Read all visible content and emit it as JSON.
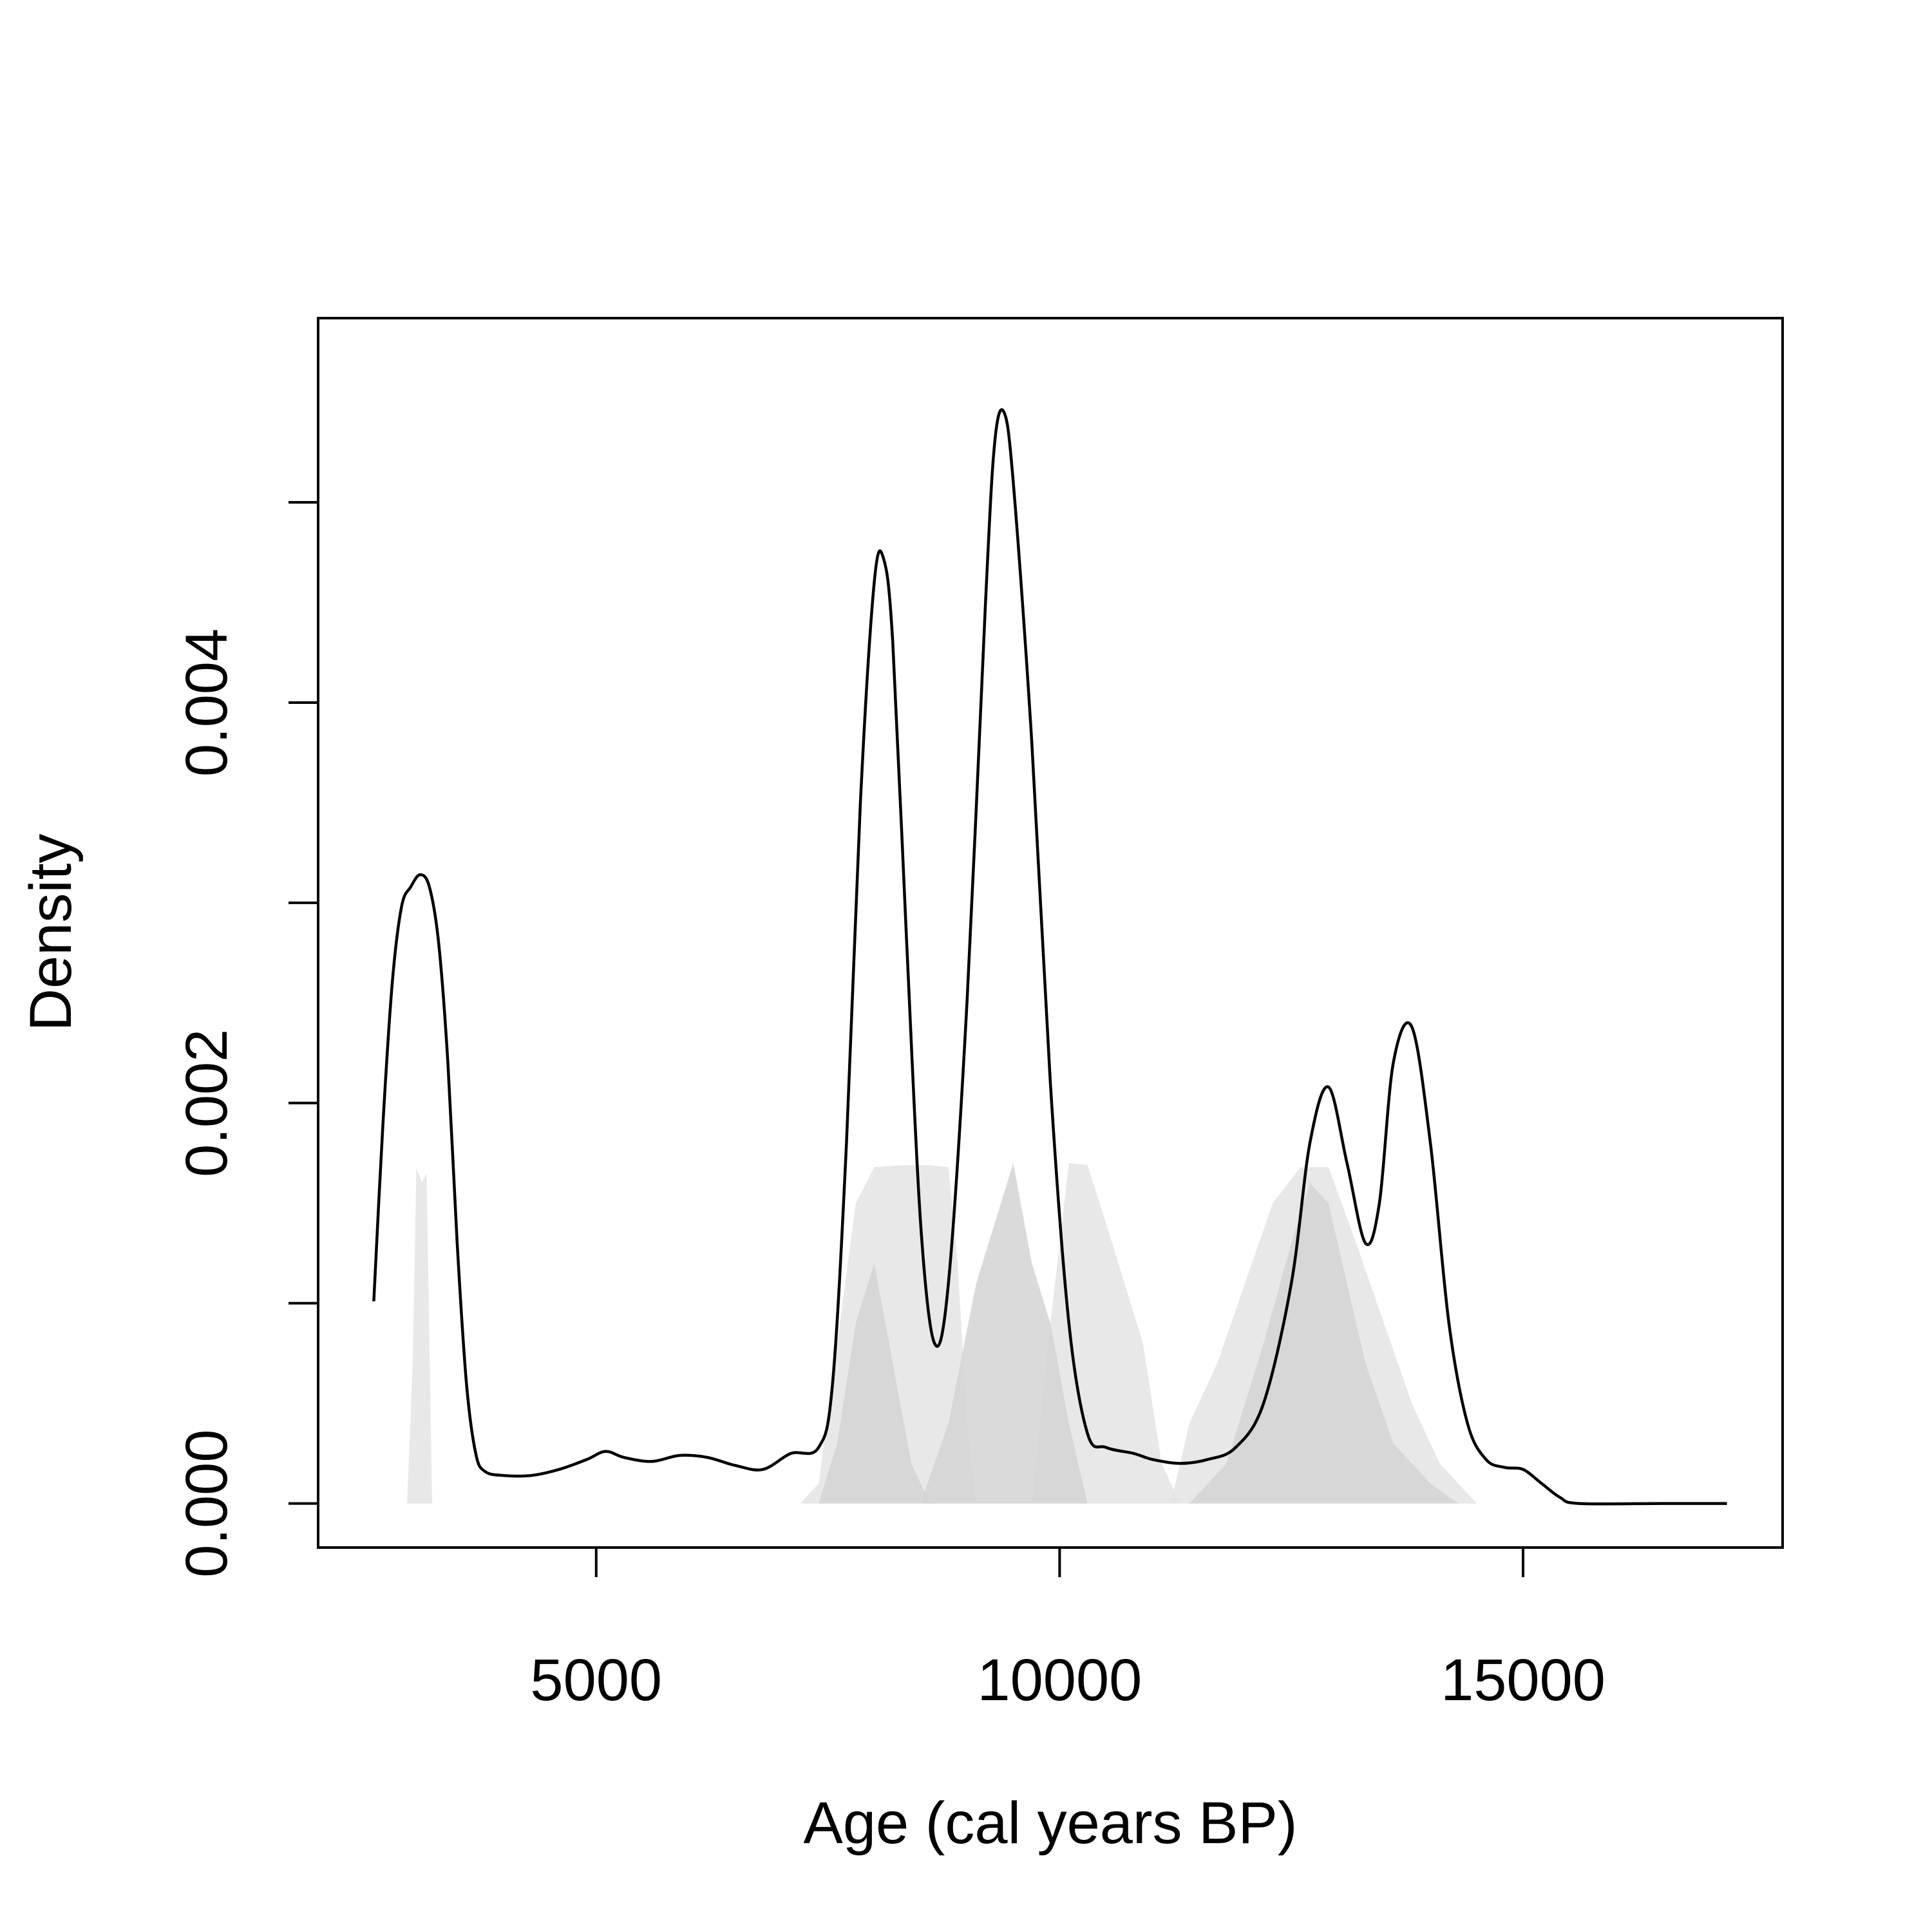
{
  "chart_data": {
    "type": "area",
    "title": "",
    "xlabel": "Age (cal years BP)",
    "ylabel": "Density",
    "xlim": [
      2000,
      17800
    ],
    "ylim": [
      -0.00022,
      0.00592
    ],
    "x_ticks": [
      5000,
      10000,
      15000
    ],
    "x_tick_labels": [
      "5000",
      "10000",
      "15000"
    ],
    "y_ticks": [
      0,
      0.001,
      0.002,
      0.003,
      0.004,
      0.005
    ],
    "y_tick_labels": [
      "0.000",
      "",
      "0.002",
      "",
      "0.004",
      ""
    ],
    "grid": false,
    "legend": "none",
    "colors": {
      "line": "#000000",
      "shade_light": "#e6e6e6",
      "shade_dark": "#d3d3d3",
      "frame": "#000000"
    },
    "series": [
      {
        "kind": "summed-density-line",
        "points": [
          [
            2600,
            0.00101
          ],
          [
            2700,
            0.0019
          ],
          [
            2800,
            0.0026
          ],
          [
            2900,
            0.00298
          ],
          [
            3000,
            0.00308
          ],
          [
            3100,
            0.00314
          ],
          [
            3200,
            0.00308
          ],
          [
            3300,
            0.0028
          ],
          [
            3400,
            0.0022
          ],
          [
            3500,
            0.0013
          ],
          [
            3600,
            0.0006
          ],
          [
            3700,
            0.00025
          ],
          [
            3800,
            0.00016
          ],
          [
            4000,
            0.00014
          ],
          [
            4300,
            0.00014
          ],
          [
            4600,
            0.00017
          ],
          [
            4900,
            0.00022
          ],
          [
            5100,
            0.00026
          ],
          [
            5300,
            0.00023
          ],
          [
            5600,
            0.00021
          ],
          [
            5900,
            0.00024
          ],
          [
            6200,
            0.00023
          ],
          [
            6500,
            0.00019
          ],
          [
            6800,
            0.00017
          ],
          [
            7100,
            0.00025
          ],
          [
            7400,
            0.00028
          ],
          [
            7550,
            0.0006
          ],
          [
            7700,
            0.0018
          ],
          [
            7850,
            0.0035
          ],
          [
            8000,
            0.0046
          ],
          [
            8100,
            0.00472
          ],
          [
            8200,
            0.0043
          ],
          [
            8350,
            0.0028
          ],
          [
            8500,
            0.0014
          ],
          [
            8650,
            0.0008
          ],
          [
            8800,
            0.0011
          ],
          [
            9000,
            0.0025
          ],
          [
            9200,
            0.0045
          ],
          [
            9300,
            0.0053
          ],
          [
            9400,
            0.00545
          ],
          [
            9500,
            0.0051
          ],
          [
            9700,
            0.0038
          ],
          [
            9900,
            0.0021
          ],
          [
            10100,
            0.0009
          ],
          [
            10300,
            0.00035
          ],
          [
            10500,
            0.00028
          ],
          [
            10800,
            0.00025
          ],
          [
            11000,
            0.00022
          ],
          [
            11300,
            0.0002
          ],
          [
            11600,
            0.00022
          ],
          [
            11900,
            0.00028
          ],
          [
            12200,
            0.0005
          ],
          [
            12500,
            0.0011
          ],
          [
            12700,
            0.0018
          ],
          [
            12900,
            0.00208
          ],
          [
            13100,
            0.0017
          ],
          [
            13300,
            0.0013
          ],
          [
            13450,
            0.0015
          ],
          [
            13600,
            0.0022
          ],
          [
            13800,
            0.00238
          ],
          [
            14000,
            0.0018
          ],
          [
            14200,
            0.0009
          ],
          [
            14400,
            0.0004
          ],
          [
            14600,
            0.00022
          ],
          [
            14800,
            0.00018
          ],
          [
            15000,
            0.00017
          ],
          [
            15200,
            0.0001
          ],
          [
            15400,
            3e-05
          ],
          [
            15600,
            0.0
          ],
          [
            16500,
            0.0
          ],
          [
            17200,
            0.0
          ]
        ]
      }
    ],
    "shaded_densities": [
      {
        "shade": "light",
        "points": [
          [
            2960,
            0.0
          ],
          [
            3020,
            0.0007
          ],
          [
            3060,
            0.00168
          ],
          [
            3120,
            0.0016
          ],
          [
            3170,
            0.00165
          ],
          [
            3230,
            0.0
          ],
          [
            3300,
            0.0
          ]
        ]
      },
      {
        "shade": "light",
        "points": [
          [
            7200,
            0.0
          ],
          [
            7400,
            0.0001
          ],
          [
            7600,
            0.0008
          ],
          [
            7800,
            0.0015
          ],
          [
            8000,
            0.00168
          ],
          [
            8300,
            0.00169
          ],
          [
            8600,
            0.00169
          ],
          [
            8800,
            0.00168
          ],
          [
            8900,
            0.0012
          ],
          [
            9000,
            0.0004
          ],
          [
            9100,
            0.0
          ],
          [
            9200,
            0.0
          ]
        ]
      },
      {
        "shade": "light",
        "points": [
          [
            9700,
            0.0
          ],
          [
            9900,
            0.0009
          ],
          [
            10100,
            0.0017
          ],
          [
            10300,
            0.00169
          ],
          [
            10500,
            0.0014
          ],
          [
            10700,
            0.0011
          ],
          [
            10900,
            0.0008
          ],
          [
            11100,
            0.0002
          ],
          [
            11300,
            0.0
          ],
          [
            11500,
            0.0
          ]
        ]
      },
      {
        "shade": "light",
        "points": [
          [
            11200,
            0.0
          ],
          [
            11400,
            0.0004
          ],
          [
            11700,
            0.0007
          ],
          [
            12000,
            0.0011
          ],
          [
            12300,
            0.0015
          ],
          [
            12600,
            0.00168
          ],
          [
            12900,
            0.00168
          ],
          [
            13200,
            0.0013
          ],
          [
            13500,
            0.0009
          ],
          [
            13800,
            0.0005
          ],
          [
            14100,
            0.0002
          ],
          [
            14500,
            0.0
          ],
          [
            14800,
            0.0
          ]
        ]
      },
      {
        "shade": "dark",
        "points": [
          [
            7400,
            0.0
          ],
          [
            7600,
            0.0003
          ],
          [
            7800,
            0.0009
          ],
          [
            8000,
            0.0012
          ],
          [
            8200,
            0.0007
          ],
          [
            8400,
            0.0002
          ],
          [
            8600,
            0.0
          ],
          [
            8800,
            0.0
          ]
        ]
      },
      {
        "shade": "dark",
        "points": [
          [
            8500,
            0.0
          ],
          [
            8800,
            0.0004
          ],
          [
            9100,
            0.0011
          ],
          [
            9300,
            0.0014
          ],
          [
            9500,
            0.0017
          ],
          [
            9700,
            0.0012
          ],
          [
            9900,
            0.0009
          ],
          [
            10100,
            0.0004
          ],
          [
            10300,
            0.0
          ],
          [
            10500,
            0.0
          ]
        ]
      },
      {
        "shade": "dark",
        "points": [
          [
            11400,
            0.0
          ],
          [
            11800,
            0.0002
          ],
          [
            12200,
            0.0008
          ],
          [
            12500,
            0.0013
          ],
          [
            12700,
            0.0016
          ],
          [
            12900,
            0.0015
          ],
          [
            13100,
            0.0011
          ],
          [
            13300,
            0.0007
          ],
          [
            13600,
            0.0003
          ],
          [
            14000,
            0.0001
          ],
          [
            14300,
            0.0
          ],
          [
            14600,
            0.0
          ]
        ]
      }
    ]
  }
}
